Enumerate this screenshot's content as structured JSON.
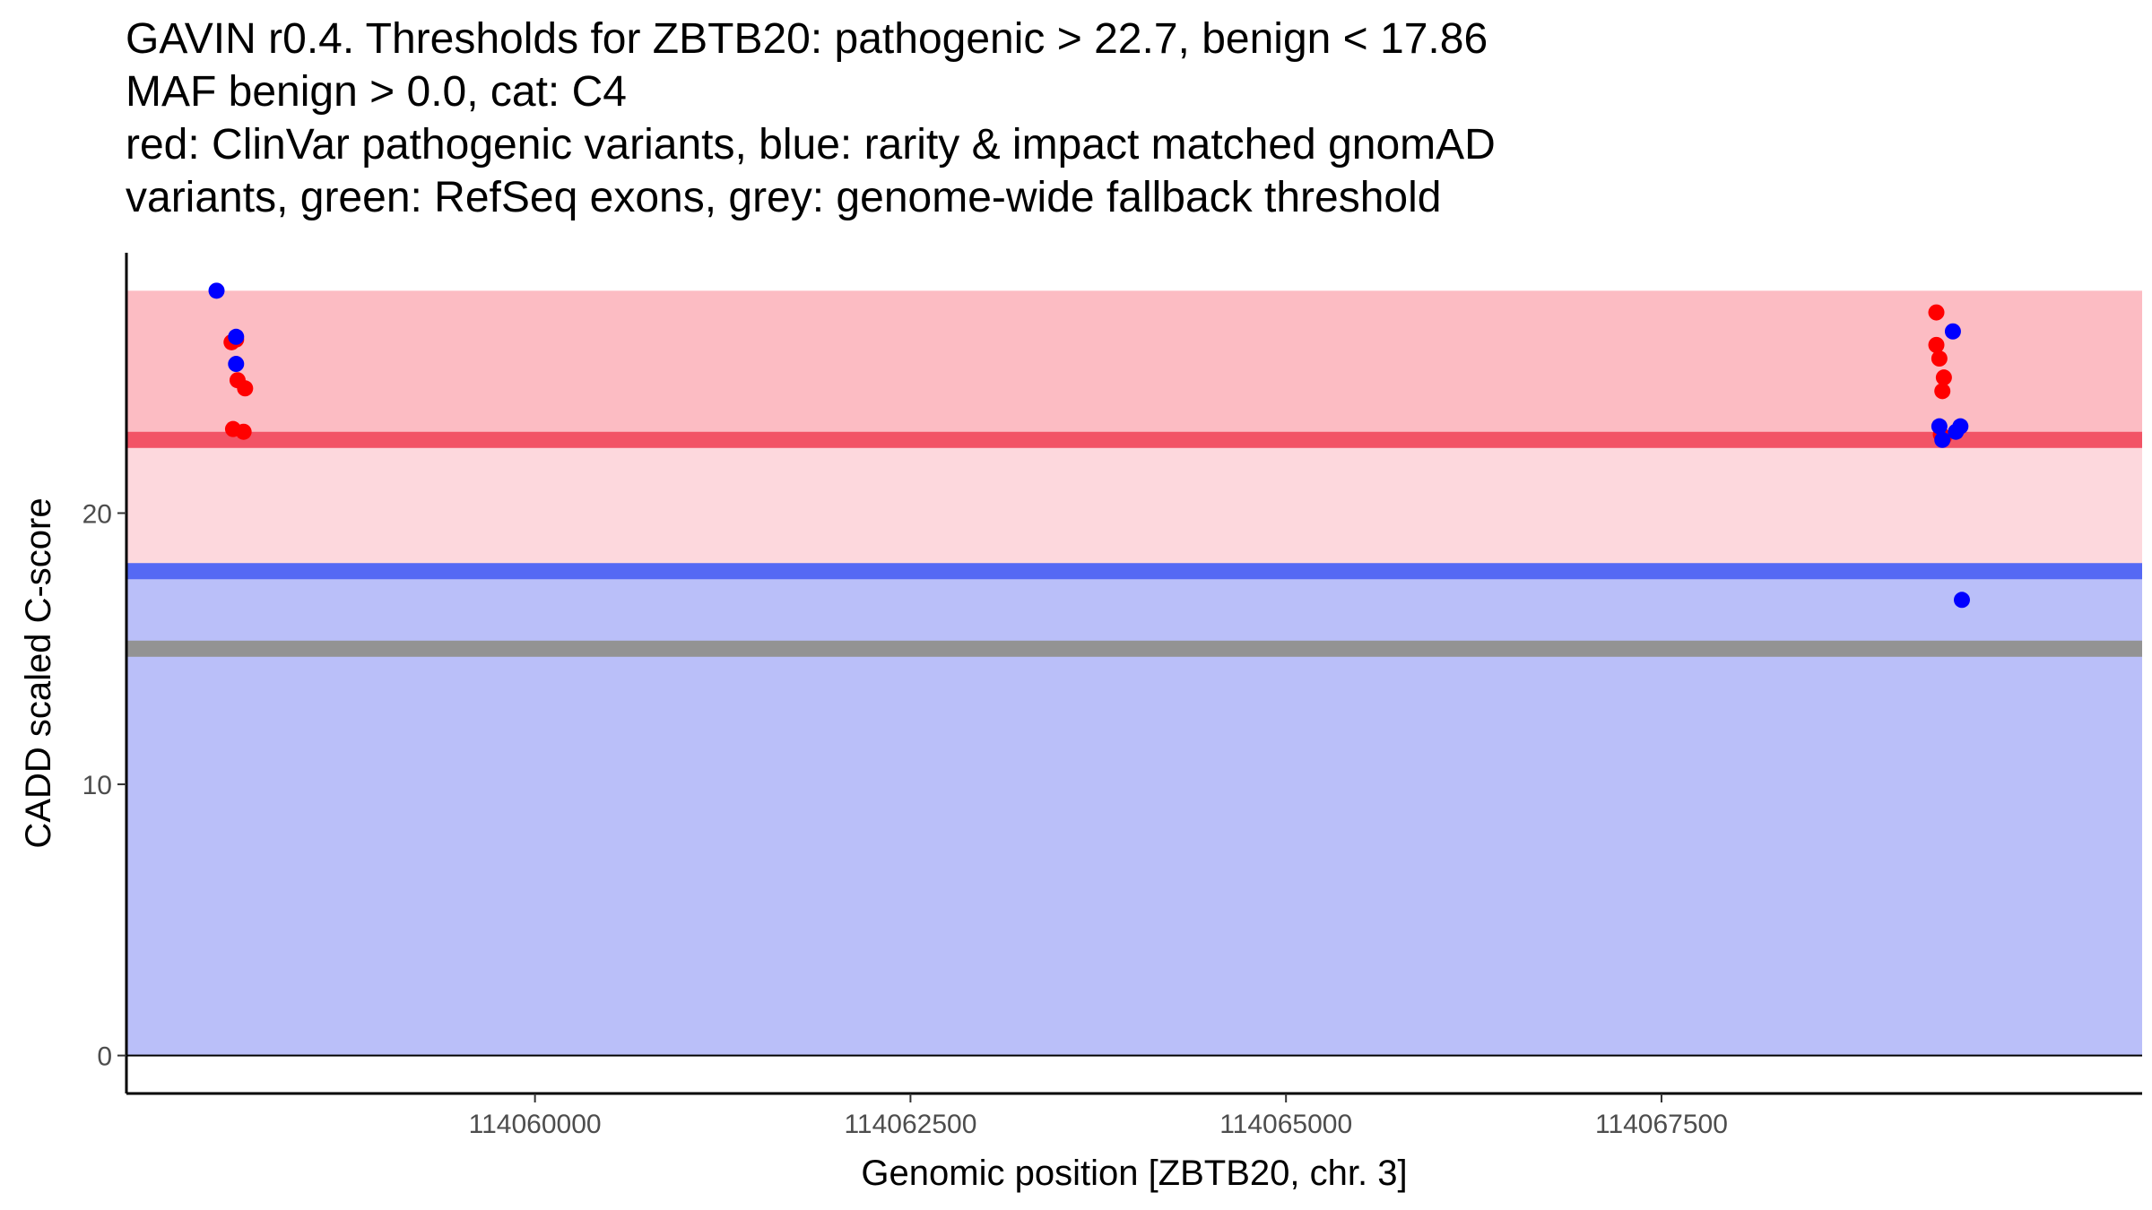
{
  "title_lines": [
    "GAVIN r0.4. Thresholds for ZBTB20: pathogenic > 22.7, benign < 17.86",
    "MAF benign > 0.0, cat: C4",
    "red: ClinVar pathogenic variants, blue: rarity & impact matched gnomAD",
    "variants, green: RefSeq exons, grey: genome-wide fallback threshold"
  ],
  "chart_data": {
    "type": "scatter",
    "xlabel": "Genomic position [ZBTB20, chr. 3]",
    "ylabel": "CADD scaled C-score",
    "xlim": [
      114057280,
      114070700
    ],
    "ylim": [
      -1.4,
      29.6
    ],
    "x_ticks": [
      {
        "value": 114060000,
        "label": "114060000"
      },
      {
        "value": 114062500,
        "label": "114062500"
      },
      {
        "value": 114065000,
        "label": "114065000"
      },
      {
        "value": 114067500,
        "label": "114067500"
      }
    ],
    "y_ticks": [
      {
        "value": 0,
        "label": "0"
      },
      {
        "value": 10,
        "label": "10"
      },
      {
        "value": 20,
        "label": "20"
      }
    ],
    "bands": [
      {
        "name": "pathogenic-region",
        "y0": 22.7,
        "y1": 28.2,
        "color": "#fcbcc3"
      },
      {
        "name": "uncertain-region",
        "y0": 17.86,
        "y1": 22.7,
        "color": "#fdd8dd"
      },
      {
        "name": "benign-region",
        "y0": 0,
        "y1": 17.86,
        "color": "#babff9"
      }
    ],
    "thresholds": [
      {
        "name": "pathogenic-threshold",
        "value": 22.7,
        "color": "#f25466"
      },
      {
        "name": "benign-threshold",
        "value": 17.86,
        "color": "#5569f4"
      },
      {
        "name": "fallback-threshold",
        "value": 15.0,
        "color": "#939393"
      }
    ],
    "zero_line": 0,
    "series": [
      {
        "name": "ClinVar pathogenic variants",
        "color": "#ff0000",
        "points": [
          {
            "x": 114057980,
            "y": 26.3
          },
          {
            "x": 114058010,
            "y": 26.4
          },
          {
            "x": 114058020,
            "y": 24.9
          },
          {
            "x": 114058070,
            "y": 24.6
          },
          {
            "x": 114057990,
            "y": 23.1
          },
          {
            "x": 114058060,
            "y": 23.0
          },
          {
            "x": 114069330,
            "y": 27.4
          },
          {
            "x": 114069330,
            "y": 26.2
          },
          {
            "x": 114069350,
            "y": 25.7
          },
          {
            "x": 114069380,
            "y": 25.0
          },
          {
            "x": 114069370,
            "y": 24.5
          },
          {
            "x": 114069360,
            "y": 22.9
          },
          {
            "x": 114069380,
            "y": 22.8
          }
        ]
      },
      {
        "name": "rarity & impact matched gnomAD variants",
        "color": "#0000ff",
        "points": [
          {
            "x": 114057880,
            "y": 28.2
          },
          {
            "x": 114058010,
            "y": 26.5
          },
          {
            "x": 114058010,
            "y": 25.5
          },
          {
            "x": 114069440,
            "y": 26.7
          },
          {
            "x": 114069350,
            "y": 23.2
          },
          {
            "x": 114069490,
            "y": 23.2
          },
          {
            "x": 114069460,
            "y": 23.0
          },
          {
            "x": 114069370,
            "y": 22.7
          },
          {
            "x": 114069500,
            "y": 16.8
          }
        ]
      }
    ]
  }
}
